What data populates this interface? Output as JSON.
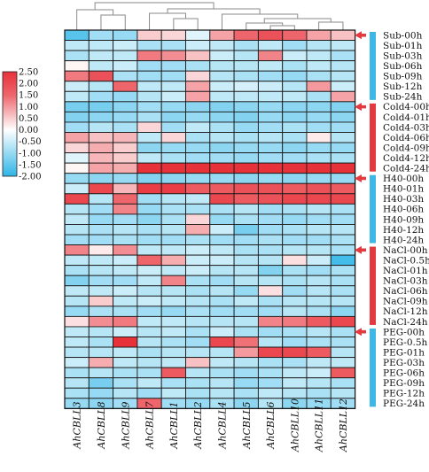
{
  "chart_data": {
    "type": "heatmap",
    "title": "",
    "xlabel": "",
    "ylabel": "",
    "columns": [
      "AhCBLL3",
      "AhCBLL8",
      "AhCBLL9",
      "AhCBLL7",
      "AhCBLL1",
      "AhCBLL2",
      "AhCBLL4",
      "AhCBLL5",
      "AhCBLL6",
      "AhCBLL10",
      "AhCBLL11",
      "AhCBLL12"
    ],
    "rows": [
      "Sub-00h",
      "Sub-01h",
      "Sub-03h",
      "Sub-06h",
      "Sub-09h",
      "Sub-12h",
      "Sub-24h",
      "Cold4-00h",
      "Cold4-01h",
      "Cold4-03h",
      "Cold4-06h",
      "Cold4-09h",
      "Cold4-12h",
      "Cold4-24h",
      "H40-00h",
      "H40-01h",
      "H40-03h",
      "H40-06h",
      "H40-09h",
      "H40-12h",
      "H40-24h",
      "NaCl-00h",
      "NaCl-0.5h",
      "NaCl-01h",
      "NaCl-03h",
      "NaCl-06h",
      "NaCl-09h",
      "NaCl-12h",
      "NaCl-24h",
      "PEG-00h",
      "PEG-0.5h",
      "PEG-01h",
      "PEG-03h",
      "PEG-06h",
      "PEG-09h",
      "PEG-12h",
      "PEG-24h"
    ],
    "groups": [
      {
        "name": "Sub",
        "start": 0,
        "end": 6,
        "color": "#3cb7e6"
      },
      {
        "name": "Cold4",
        "start": 7,
        "end": 13,
        "color": "#e43a3f"
      },
      {
        "name": "H40",
        "start": 14,
        "end": 20,
        "color": "#3cb7e6"
      },
      {
        "name": "NaCl",
        "start": 21,
        "end": 28,
        "color": "#e43a3f"
      },
      {
        "name": "PEG",
        "start": 29,
        "end": 36,
        "color": "#3cb7e6"
      }
    ],
    "values": [
      [
        -1.6,
        -0.9,
        -1.0,
        0.5,
        0.4,
        -0.3,
        0.9,
        1.5,
        1.7,
        1.5,
        0.9,
        0.6
      ],
      [
        -0.6,
        -0.6,
        -0.5,
        -0.8,
        -0.8,
        -0.5,
        -0.6,
        -0.8,
        -0.6,
        -0.9,
        -0.7,
        -0.6
      ],
      [
        -0.8,
        -0.6,
        -0.6,
        1.3,
        1.1,
        0.6,
        -0.5,
        -0.7,
        1.2,
        -0.5,
        -0.6,
        -0.8
      ],
      [
        0.1,
        -0.6,
        -0.5,
        -0.9,
        -0.9,
        -0.8,
        -0.7,
        -0.7,
        -0.6,
        -0.8,
        -0.6,
        -0.7
      ],
      [
        1.3,
        1.7,
        -0.8,
        -0.9,
        -0.9,
        0.4,
        -0.7,
        -0.8,
        -0.9,
        -1.0,
        -0.8,
        -0.7
      ],
      [
        -0.5,
        -0.7,
        1.5,
        -0.6,
        -0.6,
        0.9,
        -0.5,
        -0.4,
        -0.5,
        -0.7,
        1.0,
        -0.5
      ],
      [
        -0.6,
        -0.9,
        -1.0,
        -0.7,
        -0.5,
        0.9,
        -0.6,
        -0.6,
        -0.6,
        -0.6,
        -0.8,
        0.9
      ],
      [
        -1.3,
        -1.3,
        -1.1,
        -0.9,
        -1.0,
        -1.1,
        -1.2,
        -1.1,
        -1.0,
        -1.1,
        -1.1,
        -1.2
      ],
      [
        -1.2,
        -1.1,
        -1.0,
        -0.8,
        -1.1,
        -1.0,
        -1.1,
        -1.2,
        -1.0,
        -1.1,
        -1.0,
        -1.1
      ],
      [
        -0.9,
        -0.7,
        -0.8,
        0.4,
        -0.9,
        -0.6,
        -0.8,
        -1.0,
        -0.9,
        -0.8,
        -0.9,
        -0.9
      ],
      [
        0.9,
        0.6,
        0.7,
        -0.6,
        0.4,
        -0.8,
        -0.7,
        -0.8,
        -0.7,
        -0.8,
        0.2,
        -0.7
      ],
      [
        0.4,
        0.8,
        0.5,
        -1.1,
        -1.0,
        -1.0,
        -1.1,
        -1.0,
        -1.0,
        -1.1,
        -1.0,
        -1.0
      ],
      [
        -0.3,
        0.7,
        0.5,
        -0.6,
        -0.8,
        -0.9,
        -0.9,
        -1.0,
        -0.9,
        -0.9,
        -0.8,
        -0.8
      ],
      [
        0.1,
        0.9,
        0.8,
        2.0,
        2.0,
        2.0,
        2.0,
        2.0,
        2.0,
        2.0,
        2.0,
        2.0
      ],
      [
        -1.0,
        -1.1,
        -1.0,
        -1.2,
        -1.1,
        -1.0,
        -1.0,
        -1.1,
        -1.0,
        -1.1,
        -1.0,
        -1.0
      ],
      [
        -0.5,
        1.8,
        0.7,
        1.9,
        1.9,
        1.6,
        1.6,
        1.7,
        1.7,
        1.6,
        1.7,
        1.6
      ],
      [
        1.8,
        -0.7,
        1.5,
        -0.9,
        -0.7,
        -0.6,
        1.8,
        1.6,
        1.7,
        1.8,
        1.8,
        1.8
      ],
      [
        -0.7,
        -0.9,
        1.2,
        -1.0,
        -0.8,
        -0.8,
        -0.8,
        -0.7,
        -0.9,
        -0.8,
        -0.7,
        -0.8
      ],
      [
        -0.6,
        -1.0,
        -0.9,
        -1.1,
        -0.8,
        0.4,
        -1.0,
        -0.8,
        -0.9,
        -1.0,
        -0.9,
        -0.9
      ],
      [
        -0.7,
        -0.8,
        -0.7,
        -0.8,
        -0.7,
        0.8,
        -0.5,
        -1.3,
        -0.9,
        -0.8,
        -0.7,
        -0.7
      ],
      [
        -0.9,
        -0.9,
        -0.8,
        -0.9,
        -0.9,
        -0.8,
        -0.9,
        -0.9,
        -0.8,
        -0.9,
        -0.9,
        -0.8
      ],
      [
        1.2,
        0.2,
        1.1,
        -0.6,
        -0.6,
        -0.5,
        -0.6,
        -0.8,
        -0.8,
        -0.7,
        -0.7,
        -0.8
      ],
      [
        -0.6,
        -0.6,
        -0.5,
        1.5,
        0.8,
        -0.5,
        -0.5,
        -0.7,
        -0.7,
        0.3,
        -0.5,
        -1.8
      ],
      [
        -0.8,
        -0.7,
        -0.6,
        -0.5,
        -0.6,
        -0.5,
        -0.7,
        -0.7,
        -1.2,
        -0.8,
        -0.9,
        -0.8
      ],
      [
        -1.2,
        -0.9,
        -0.9,
        -0.6,
        1.2,
        -0.8,
        -0.9,
        -0.7,
        -0.7,
        -0.8,
        -0.7,
        -0.8
      ],
      [
        -0.6,
        -0.6,
        -0.5,
        -0.7,
        -0.7,
        -0.8,
        -0.7,
        -1.0,
        0.3,
        -0.9,
        -0.7,
        -0.8
      ],
      [
        -0.7,
        0.5,
        -0.6,
        -0.5,
        -0.6,
        -0.7,
        -0.8,
        -0.6,
        -0.8,
        -0.7,
        -0.7,
        -0.7
      ],
      [
        -1.0,
        -0.8,
        -0.8,
        -0.9,
        -1.0,
        -0.8,
        -0.9,
        -0.9,
        -0.9,
        -0.7,
        -0.8,
        -1.1
      ],
      [
        0.3,
        1.1,
        1.3,
        -0.6,
        -0.6,
        -0.7,
        -0.7,
        -0.7,
        1.2,
        1.3,
        1.6,
        1.8
      ],
      [
        -0.6,
        -0.7,
        -0.5,
        -0.7,
        -0.6,
        -0.8,
        -0.5,
        -0.8,
        -0.9,
        -0.8,
        -0.7,
        -0.8
      ],
      [
        -0.6,
        -0.8,
        2.1,
        -0.7,
        -0.8,
        -0.9,
        1.8,
        1.4,
        -0.7,
        -0.9,
        -0.8,
        -0.8
      ],
      [
        -0.7,
        -0.7,
        -0.6,
        -0.8,
        -0.7,
        -0.7,
        -0.7,
        1.0,
        1.8,
        1.8,
        1.6,
        -0.7
      ],
      [
        -0.5,
        0.8,
        -0.6,
        -0.7,
        -0.6,
        0.6,
        -0.6,
        -0.7,
        -0.8,
        -0.8,
        -0.6,
        -0.6
      ],
      [
        -0.8,
        -0.7,
        -0.8,
        -0.8,
        1.6,
        -0.7,
        -0.8,
        -0.9,
        -0.8,
        -0.6,
        -0.5,
        1.6
      ],
      [
        -0.7,
        -1.3,
        -0.8,
        -0.6,
        -0.8,
        -0.8,
        -0.7,
        -1.0,
        -0.9,
        -0.6,
        -0.7,
        -0.8
      ],
      [
        -0.8,
        -1.0,
        -0.7,
        -0.9,
        -0.6,
        -0.8,
        -0.7,
        -0.8,
        -0.6,
        -0.7,
        -0.8,
        -0.7
      ],
      [
        -1.0,
        -1.1,
        -0.9,
        1.5,
        -0.9,
        -1.0,
        -0.8,
        -1.1,
        -0.7,
        -1.1,
        -1.0,
        -0.9
      ]
    ],
    "color_scale": {
      "min": -2.0,
      "max": 2.5,
      "low_color": "#2eb4e6",
      "mid_color": "#ffffff",
      "high_color": "#e8323a",
      "ticks": [
        "2.50",
        "2.00",
        "1.50",
        "1.00",
        "0.50",
        "0.00",
        "-0.50",
        "-1.00",
        "-1.50",
        "-2.00"
      ]
    },
    "arrow_color": "#e43a3f"
  }
}
